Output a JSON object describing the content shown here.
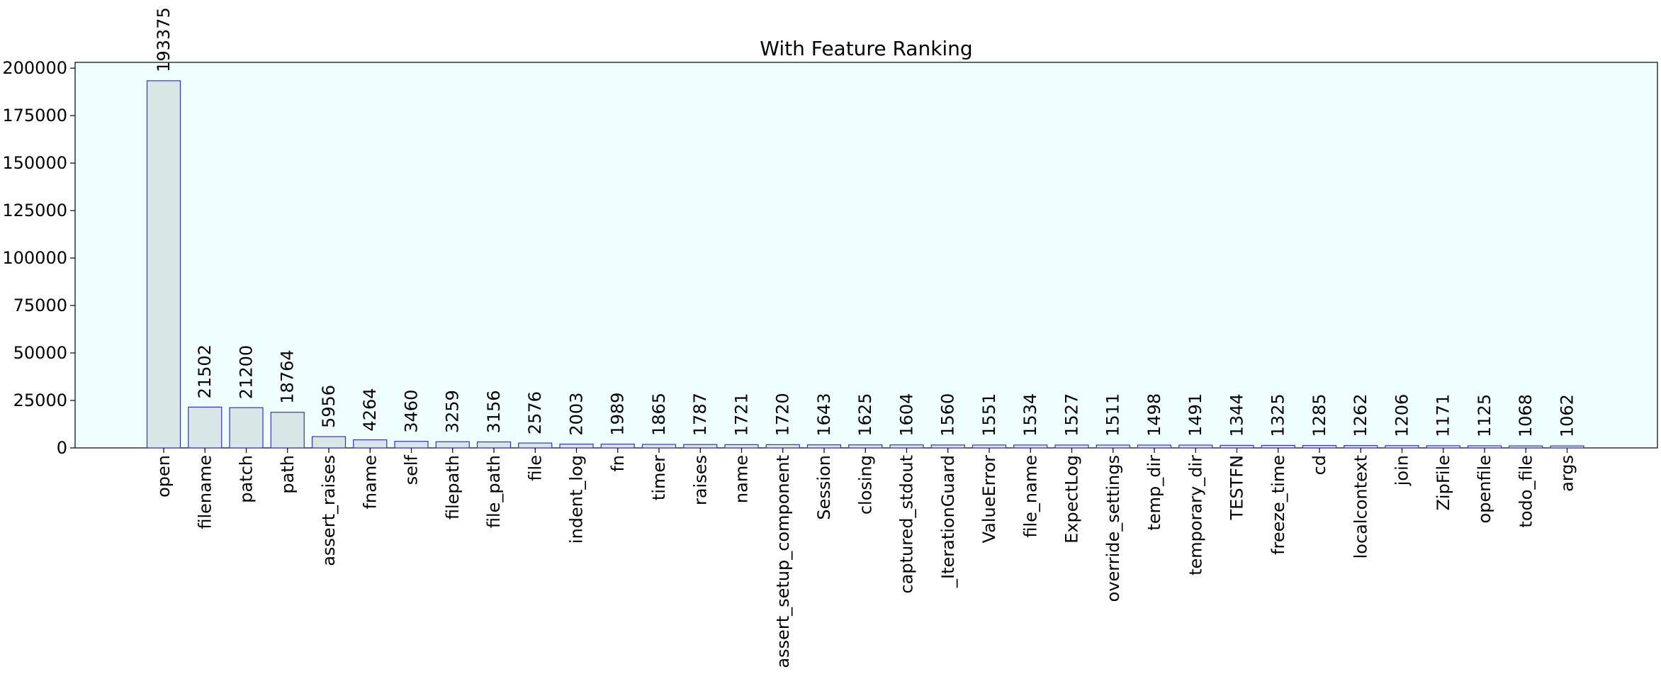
{
  "chart_data": {
    "type": "bar",
    "title": "With Feature Ranking",
    "xlabel": "",
    "ylabel": "",
    "ylim": [
      0,
      200000
    ],
    "yticks": [
      0,
      25000,
      50000,
      75000,
      100000,
      125000,
      150000,
      175000,
      200000
    ],
    "grid": false,
    "legend": "none",
    "categories": [
      "open",
      "filename",
      "patch",
      "path",
      "assert_raises",
      "fname",
      "self",
      "filepath",
      "file_path",
      "file",
      "indent_log",
      "fn",
      "timer",
      "raises",
      "name",
      "assert_setup_component",
      "Session",
      "closing",
      "captured_stdout",
      "_IterationGuard",
      "ValueError",
      "file_name",
      "ExpectLog",
      "override_settings",
      "temp_dir",
      "temporary_dir",
      "TESTFN",
      "freeze_time",
      "cd",
      "localcontext",
      "join",
      "ZipFile",
      "openfile",
      "todo_file",
      "args"
    ],
    "values": [
      193375,
      21502,
      21200,
      18764,
      5956,
      4264,
      3460,
      3259,
      3156,
      2576,
      2003,
      1989,
      1865,
      1787,
      1721,
      1720,
      1643,
      1625,
      1604,
      1560,
      1551,
      1534,
      1527,
      1511,
      1498,
      1491,
      1344,
      1325,
      1285,
      1262,
      1206,
      1171,
      1125,
      1068,
      1062
    ],
    "colors": {
      "plot_background": "#f0ffff",
      "bar_fill": "#d9e6e6",
      "bar_edge": "#3333cc",
      "axis": "#000000"
    }
  }
}
